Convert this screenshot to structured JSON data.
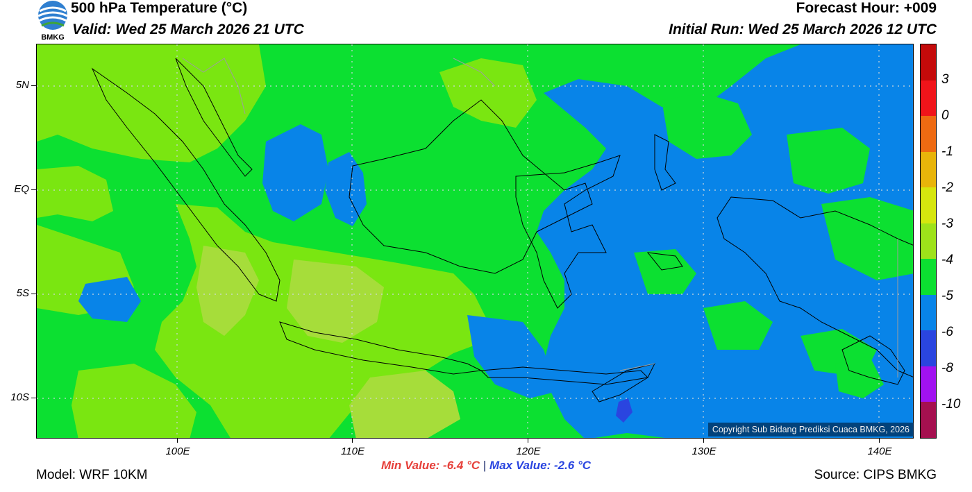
{
  "header": {
    "title": "500 hPa Temperature (°C)",
    "valid": "Valid: Wed 25 March 2026 21 UTC",
    "forecast_hour": "Forecast Hour: +009",
    "initial_run": "Initial Run: Wed 25 March 2026 12 UTC",
    "logo_text": "BMKG"
  },
  "map": {
    "lat_labels": [
      "5N",
      "EQ",
      "5S",
      "10S"
    ],
    "lon_labels": [
      "100E",
      "110E",
      "120E",
      "130E",
      "140E"
    ],
    "copyright": "Copyright Sub Bidang Prediksi Cuaca BMKG, 2026",
    "colors": {
      "ocean_bg": "#0ce031",
      "cool_band": "#0884e8",
      "warm_band": "#7ae611",
      "warmer_band": "#a6dd3a"
    }
  },
  "stats": {
    "min": "Min Value: -6.4 °C",
    "separator": "|",
    "max": "Max Value: -2.6 °C"
  },
  "footer": {
    "model": "Model: WRF 10KM",
    "source": "Source: CIPS BMKG"
  },
  "colorbar": {
    "labels": [
      "3",
      "0",
      "-1",
      "-2",
      "-3",
      "-4",
      "-5",
      "-6",
      "-8",
      "-10"
    ],
    "colors": [
      "#c40a0a",
      "#f0141a",
      "#ee6a12",
      "#e8b40a",
      "#d6e60e",
      "#9ee21a",
      "#0ce031",
      "#0884e8",
      "#2a45e0",
      "#a112f0",
      "#a5104f"
    ]
  }
}
